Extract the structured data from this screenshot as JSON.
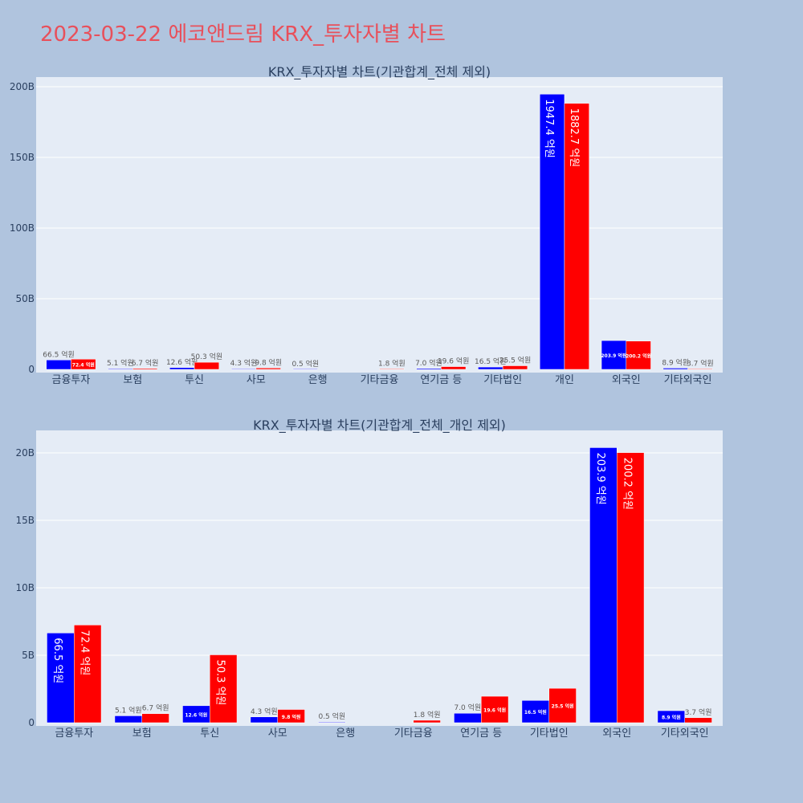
{
  "title": "2023-03-22 에코앤드림 KRX_투자자별 차트",
  "colors": {
    "page_bg": "#b0c4de",
    "plot_bg": "#e5ecf6",
    "buy": "#0000ff",
    "sell": "#ff0000",
    "title": "#e8505b"
  },
  "chart_data": [
    {
      "type": "bar",
      "title": "KRX_투자자별 차트(기관합계_전체 제외)",
      "categories": [
        "금융투자",
        "보험",
        "투신",
        "사모",
        "은행",
        "기타금융",
        "연기금 등",
        "기타법인",
        "개인",
        "외국인",
        "기타외국인"
      ],
      "series": [
        {
          "values": [
            66.5,
            5.1,
            12.6,
            4.3,
            0.5,
            null,
            7.0,
            16.5,
            1947.4,
            203.9,
            8.9
          ],
          "labels": [
            "66.5 억원",
            "5.1 억원",
            "12.6 억원",
            "4.3 억원",
            "0.5 억원",
            "",
            "7.0 억원",
            "16.5 억원",
            "1947.4 억원",
            "203.9 억원",
            "8.9 억원"
          ]
        },
        {
          "values": [
            72.4,
            6.7,
            50.3,
            9.8,
            null,
            1.8,
            19.6,
            25.5,
            1882.7,
            200.2,
            3.7
          ],
          "labels": [
            "72.4 억원",
            "6.7 억원",
            "50.3 억원",
            "9.8 억원",
            "",
            "1.8 억원",
            "19.6 억원",
            "25.5 억원",
            "1882.7 억원",
            "200.2 억원",
            "3.7 억원"
          ]
        }
      ],
      "unit_per_value": 100000000,
      "ylim": [
        0,
        200000000000
      ],
      "yticks": [
        0,
        50000000000,
        100000000000,
        150000000000,
        200000000000
      ],
      "ytick_labels": [
        "0",
        "50B",
        "100B",
        "150B",
        "200B"
      ],
      "grid": true,
      "legend": "none"
    },
    {
      "type": "bar",
      "title": "KRX_투자자별 차트(기관합계_전체_개인 제외)",
      "categories": [
        "금융투자",
        "보험",
        "투신",
        "사모",
        "은행",
        "기타금융",
        "연기금 등",
        "기타법인",
        "외국인",
        "기타외국인"
      ],
      "series": [
        {
          "values": [
            66.5,
            5.1,
            12.6,
            4.3,
            0.5,
            null,
            7.0,
            16.5,
            203.9,
            8.9
          ],
          "labels": [
            "66.5 억원",
            "5.1 억원",
            "12.6 억원",
            "4.3 억원",
            "0.5 억원",
            "",
            "7.0 억원",
            "16.5 억원",
            "203.9 억원",
            "8.9 억원"
          ]
        },
        {
          "values": [
            72.4,
            6.7,
            50.3,
            9.8,
            null,
            1.8,
            19.6,
            25.5,
            200.2,
            3.7
          ],
          "labels": [
            "72.4 억원",
            "6.7 억원",
            "50.3 억원",
            "9.8 억원",
            "",
            "1.8 억원",
            "19.6 억원",
            "25.5 억원",
            "200.2 억원",
            "3.7 억원"
          ]
        }
      ],
      "unit_per_value": 100000000,
      "ylim": [
        0,
        21700000000
      ],
      "yticks": [
        0,
        5000000000,
        10000000000,
        15000000000,
        20000000000
      ],
      "ytick_labels": [
        "0",
        "5B",
        "10B",
        "15B",
        "20B"
      ],
      "grid": true,
      "legend": "none"
    }
  ]
}
